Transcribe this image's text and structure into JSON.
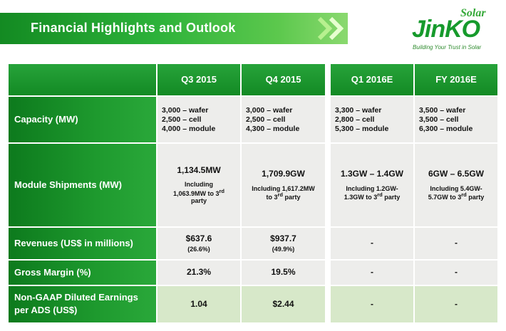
{
  "title": "Financial Highlights and Outlook",
  "logo": {
    "solar": "Solar",
    "name": "JinKO",
    "tagline": "Building Your Trust in Solar"
  },
  "colors": {
    "brand_green": "#1a9a2e",
    "row_light": "#ededeb",
    "row_last": "#d7e8c9"
  },
  "columns": [
    "Q3 2015",
    "Q4 2015",
    "Q1 2016E",
    "FY 2016E"
  ],
  "rows": {
    "capacity": {
      "label": "Capacity (MW)",
      "q3": [
        "3,000 – wafer",
        "2,500 – cell",
        "4,000 – module"
      ],
      "q4": [
        "3,000 – wafer",
        "2,500 – cell",
        "4,300 – module"
      ],
      "q1": [
        "3,300 – wafer",
        "2,800 – cell",
        "5,300 – module"
      ],
      "fy": [
        "3,500 – wafer",
        "3,500 – cell",
        "6,300 – module"
      ]
    },
    "shipments": {
      "label": "Module Shipments (MW)",
      "q3_main": "1,134.5MW",
      "q3_sub1": "Including",
      "q3_sub2": "1,063.9MW to 3",
      "q3_sup": "rd",
      "q3_sub3": "party",
      "q4_main": "1,709.9GW",
      "q4_sub1": "Including 1,617.2MW",
      "q4_sub2": "to 3",
      "q4_sup": "rd",
      "q4_sub3": " party",
      "q1_main": "1.3GW – 1.4GW",
      "q1_sub1": "Including 1.2GW-",
      "q1_sub2": "1.3GW to 3",
      "q1_sup": "rd",
      "q1_sub3": " party",
      "fy_main": "6GW – 6.5GW",
      "fy_sub1": "Including 5.4GW-",
      "fy_sub2": "5.7GW to 3",
      "fy_sup": "rd",
      "fy_sub3": " party"
    },
    "revenues": {
      "label": "Revenues (US$ in millions)",
      "q3_main": "$637.6",
      "q3_sub": "(26.6%)",
      "q4_main": "$937.7",
      "q4_sub": "(49.9%)",
      "q1": "-",
      "fy": "-"
    },
    "gross_margin": {
      "label": "Gross Margin (%)",
      "q3": "21.3%",
      "q4": "19.5%",
      "q1": "-",
      "fy": "-"
    },
    "eps": {
      "label_line1": "Non-GAAP Diluted Earnings",
      "label_line2": "per ADS (US$)",
      "q3": "1.04",
      "q4": "$2.44",
      "q1": "-",
      "fy": "-"
    }
  }
}
